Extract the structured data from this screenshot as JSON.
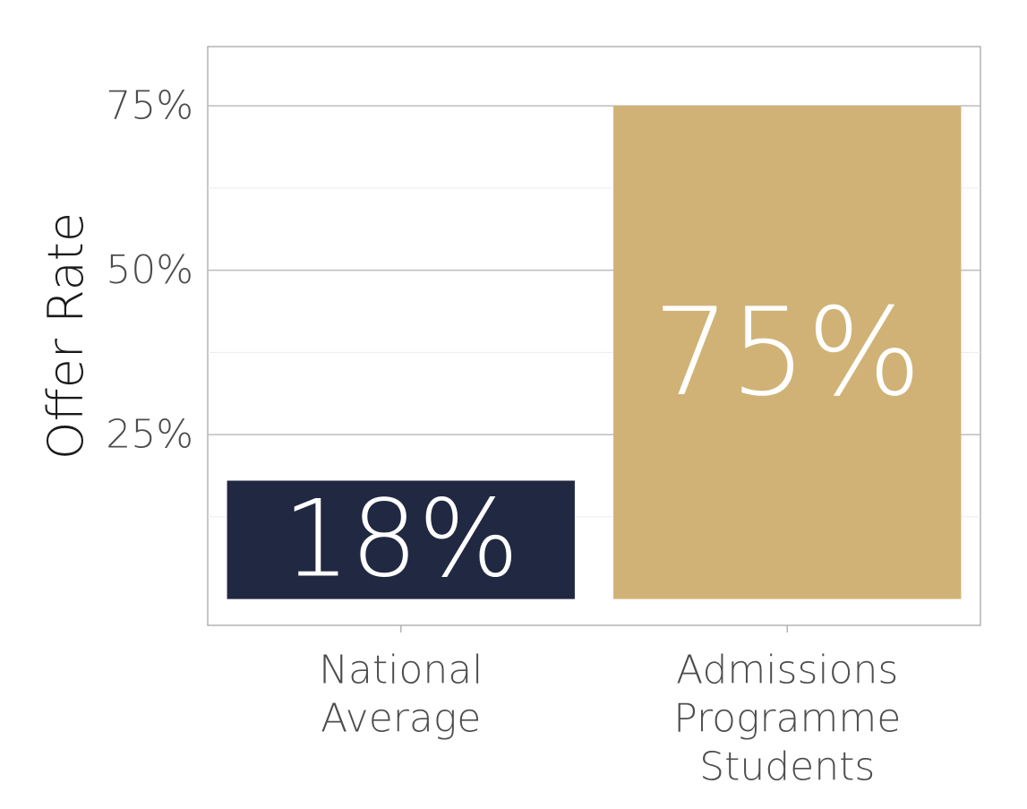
{
  "chart_data": {
    "type": "bar",
    "categories": [
      [
        "National",
        "Average"
      ],
      [
        "Admissions",
        "Programme",
        "Students"
      ]
    ],
    "values": [
      18,
      75
    ],
    "data_labels": [
      "18%",
      "75%"
    ],
    "bar_colors": [
      "#212842",
      "#d1b276"
    ],
    "ylabel": "Offer Rate",
    "xlabel": "",
    "ylim": [
      -4,
      84
    ],
    "y_ticks": [
      25,
      50,
      75
    ],
    "y_tick_labels": [
      "25%",
      "50%",
      "75%"
    ],
    "grid": true
  }
}
